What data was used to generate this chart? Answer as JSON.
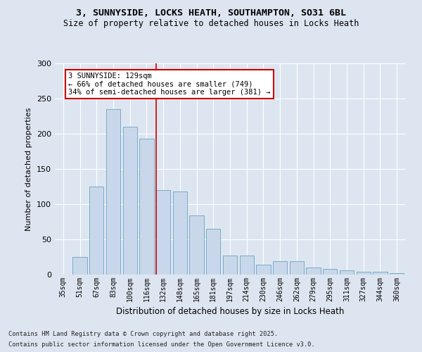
{
  "title1": "3, SUNNYSIDE, LOCKS HEATH, SOUTHAMPTON, SO31 6BL",
  "title2": "Size of property relative to detached houses in Locks Heath",
  "xlabel": "Distribution of detached houses by size in Locks Heath",
  "ylabel": "Number of detached properties",
  "categories": [
    "35sqm",
    "51sqm",
    "67sqm",
    "83sqm",
    "100sqm",
    "116sqm",
    "132sqm",
    "148sqm",
    "165sqm",
    "181sqm",
    "197sqm",
    "214sqm",
    "230sqm",
    "246sqm",
    "262sqm",
    "279sqm",
    "295sqm",
    "311sqm",
    "327sqm",
    "344sqm",
    "360sqm"
  ],
  "values": [
    0,
    25,
    125,
    235,
    210,
    193,
    120,
    118,
    84,
    65,
    27,
    27,
    14,
    19,
    19,
    10,
    8,
    6,
    4,
    4,
    2
  ],
  "bar_color": "#c8d8ea",
  "bar_edge_color": "#7aaac8",
  "highlight_line_index": 6,
  "annotation_text": "3 SUNNYSIDE: 129sqm\n← 66% of detached houses are smaller (749)\n34% of semi-detached houses are larger (381) →",
  "annotation_box_facecolor": "#ffffff",
  "annotation_box_edgecolor": "#cc0000",
  "ylim": [
    0,
    300
  ],
  "yticks": [
    0,
    50,
    100,
    150,
    200,
    250,
    300
  ],
  "background_color": "#dde6f0",
  "plot_bg_color": "#dde6f0",
  "grid_color": "#ffffff",
  "footer1": "Contains HM Land Registry data © Crown copyright and database right 2025.",
  "footer2": "Contains public sector information licensed under the Open Government Licence v3.0.",
  "fig_width": 6.0,
  "fig_height": 5.0,
  "dpi": 100
}
